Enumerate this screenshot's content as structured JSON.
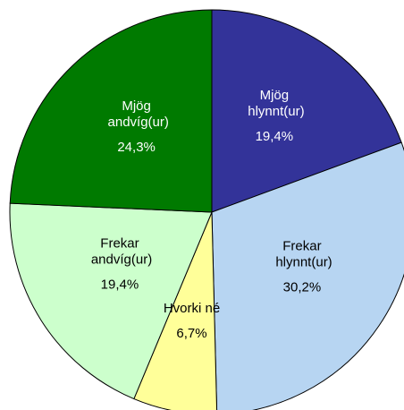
{
  "chart_data": {
    "type": "pie",
    "categories": [
      "Mjög hlynnt(ur)",
      "Frekar hlynnt(ur)",
      "Hvorki né",
      "Frekar andvíg(ur)",
      "Mjög andvíg(ur)"
    ],
    "values": [
      19.4,
      30.2,
      6.7,
      19.4,
      24.3
    ],
    "value_labels": [
      "19,4%",
      "30,2%",
      "6,7%",
      "19,4%",
      "24,3%"
    ],
    "colors": [
      "#333399",
      "#b7d5f2",
      "#ffff99",
      "#ccffcc",
      "#007a00"
    ],
    "label_colors": [
      "#ffffff",
      "#000000",
      "#000000",
      "#000000",
      "#ffffff"
    ]
  }
}
